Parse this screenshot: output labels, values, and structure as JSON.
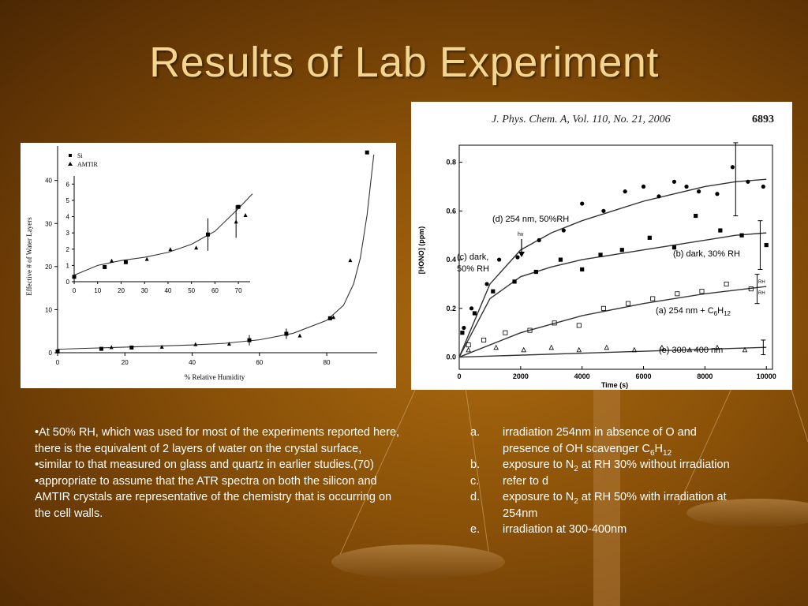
{
  "title": "Results of Lab Experiment",
  "left_chart": {
    "ylabel": "Effective # of Water Layers",
    "xlabel": "% Relative Humidity",
    "x_ticks": [
      "0",
      "20",
      "40",
      "60",
      "80"
    ],
    "y_ticks": [
      "0",
      "10",
      "20",
      "30",
      "40"
    ],
    "legend": [
      "Si",
      "AMTIR"
    ],
    "inset_x_ticks": [
      "0",
      "10",
      "20",
      "30",
      "40",
      "50",
      "60",
      "70"
    ],
    "inset_y_ticks": [
      "0",
      "1",
      "2",
      "3",
      "4",
      "5",
      "6"
    ]
  },
  "right_chart": {
    "citation": "J. Phys. Chem. A, Vol. 110, No. 21, 2006",
    "page": "6893",
    "ylabel": "[HONO] (ppm)",
    "xlabel": "Time (s)",
    "x_ticks": [
      "0",
      "2000",
      "4000",
      "6000",
      "8000",
      "10000"
    ],
    "y_ticks": [
      "0.0",
      "0.2",
      "0.4",
      "0.6",
      "0.8"
    ],
    "labels": {
      "d": "(d) 254 nm, 50%RH",
      "c1": "(c) dark,",
      "c2": "50% RH",
      "b": "(b) dark, 30% RH",
      "a_pre": "(a) 254 nm + C",
      "a_s1": "6",
      "a_mid": "H",
      "a_s2": "12",
      "e": "(e) 300 - 400 nm",
      "hv": "hv",
      "rh_top": "RH",
      "rh_bot": "RH"
    }
  },
  "bullets": [
    "•At 50% RH, which was used for most of the experiments reported here, there is the equivalent of 2 layers of water on the crystal surface,",
    "•similar to that measured on glass and quartz in earlier studies.(70)",
    "•appropriate to assume that the ATR spectra on both the silicon and AMTIR crystals are representative of the chemistry that is occurring on the cell walls."
  ],
  "list": [
    {
      "marker": "a.",
      "pre": "irradiation 254nm in absence of O and presence of OH scavenger C",
      "s1": "6",
      "mid": "H",
      "s2": "12",
      "post": ""
    },
    {
      "marker": "b.",
      "pre": "exposure to N",
      "s1": "2",
      "mid": " at RH 30% without irradiation",
      "s2": "",
      "post": ""
    },
    {
      "marker": "c.",
      "pre": "refer to d",
      "s1": "",
      "mid": "",
      "s2": "",
      "post": ""
    },
    {
      "marker": "d.",
      "pre": "exposure to N",
      "s1": "2",
      "mid": " at RH 50% with irradiation at 254nm",
      "s2": "",
      "post": ""
    },
    {
      "marker": "e.",
      "pre": "irradiation at 300-400nm",
      "s1": "",
      "mid": "",
      "s2": "",
      "post": ""
    }
  ],
  "chart_data": [
    {
      "type": "scatter",
      "xlabel": "% Relative Humidity",
      "ylabel": "Effective # of Water Layers",
      "xlim": [
        0,
        95
      ],
      "ylim": [
        0,
        48
      ],
      "series": [
        {
          "name": "Si",
          "x": [
            0,
            13,
            22,
            57,
            68,
            81,
            92
          ],
          "y": [
            0.3,
            0.9,
            1.2,
            2.9,
            4.4,
            8.0,
            46.5
          ]
        },
        {
          "name": "AMTIR",
          "x": [
            16,
            31,
            41,
            51,
            72,
            82,
            87
          ],
          "y": [
            1.3,
            1.4,
            2.0,
            2.1,
            4.0,
            8.3,
            21.5
          ]
        }
      ],
      "fit": {
        "x": [
          0,
          20,
          40,
          50,
          60,
          70,
          80,
          85,
          88,
          90,
          92,
          94
        ],
        "y": [
          0.8,
          1.3,
          1.8,
          2.2,
          3.0,
          4.5,
          7.5,
          11,
          16,
          22,
          32,
          46
        ]
      },
      "inset": {
        "xlim": [
          0,
          75
        ],
        "ylim": [
          0,
          6.5
        ],
        "series": [
          {
            "name": "Si",
            "x": [
              0,
              13,
              22,
              57,
              70
            ],
            "y": [
              0.3,
              0.9,
              1.2,
              2.9,
              4.6
            ]
          },
          {
            "name": "AMTIR",
            "x": [
              16,
              31,
              41,
              52,
              69,
              73
            ],
            "y": [
              1.3,
              1.4,
              2.0,
              2.1,
              3.7,
              4.1
            ]
          }
        ],
        "fit": {
          "x": [
            0,
            10,
            20,
            30,
            40,
            50,
            60,
            70,
            76
          ],
          "y": [
            0.4,
            1.0,
            1.3,
            1.5,
            1.8,
            2.3,
            3.1,
            4.5,
            5.4
          ]
        }
      }
    },
    {
      "type": "scatter",
      "xlabel": "Time (s)",
      "ylabel": "[HONO] (ppm)",
      "xlim": [
        0,
        10200
      ],
      "ylim": [
        -0.05,
        0.87
      ],
      "series": [
        {
          "name": "(d) 254 nm, 50%RH",
          "marker": "filled-circle",
          "x": [
            150,
            400,
            900,
            1300,
            1900,
            2600,
            3400,
            4000,
            4700,
            5400,
            6000,
            6500,
            7000,
            7400,
            7800,
            8400,
            8900,
            9400,
            9900
          ],
          "y": [
            0.12,
            0.2,
            0.3,
            0.4,
            0.41,
            0.48,
            0.52,
            0.63,
            0.6,
            0.68,
            0.7,
            0.66,
            0.72,
            0.7,
            0.68,
            0.67,
            0.78,
            0.72,
            0.7
          ],
          "fit_x": [
            0,
            1000,
            2000,
            3000,
            4000,
            5000,
            6000,
            7000,
            8000,
            9000,
            10000
          ],
          "fit_y": [
            0,
            0.3,
            0.44,
            0.51,
            0.56,
            0.6,
            0.64,
            0.67,
            0.7,
            0.72,
            0.73
          ]
        },
        {
          "name": "(c) dark, 50% RH",
          "marker": "filled-square",
          "x": [
            100,
            500,
            1100,
            1800,
            2500,
            3300,
            4000,
            4600,
            5300,
            6200,
            7000,
            7700,
            8500,
            9200,
            10000
          ],
          "y": [
            0.1,
            0.18,
            0.27,
            0.31,
            0.35,
            0.4,
            0.36,
            0.42,
            0.44,
            0.49,
            0.45,
            0.58,
            0.52,
            0.5,
            0.46
          ],
          "fit_x": [
            0,
            1000,
            2000,
            3000,
            4000,
            5000,
            6000,
            7000,
            8000,
            9000,
            10000
          ],
          "fit_y": [
            0,
            0.24,
            0.33,
            0.37,
            0.4,
            0.42,
            0.44,
            0.46,
            0.48,
            0.5,
            0.51
          ]
        },
        {
          "name": "(a) 254 nm + C6H12",
          "marker": "open-square",
          "x": [
            300,
            800,
            1500,
            2300,
            3100,
            3900,
            4700,
            5500,
            6300,
            7100,
            7900,
            8700,
            9500
          ],
          "y": [
            0.05,
            0.07,
            0.1,
            0.11,
            0.14,
            0.13,
            0.2,
            0.22,
            0.24,
            0.26,
            0.27,
            0.3,
            0.28
          ],
          "fit_x": [
            0,
            2000,
            4000,
            6000,
            8000,
            10000
          ],
          "fit_y": [
            0,
            0.1,
            0.17,
            0.22,
            0.26,
            0.29
          ]
        },
        {
          "name": "(e) 300 - 400 nm",
          "marker": "open-triangle",
          "x": [
            300,
            1200,
            2100,
            3000,
            3900,
            4800,
            5700,
            6600,
            7500,
            8400,
            9300
          ],
          "y": [
            0.03,
            0.04,
            0.03,
            0.04,
            0.03,
            0.04,
            0.03,
            0.04,
            0.03,
            0.04,
            0.03
          ],
          "fit_x": [
            0,
            10000
          ],
          "fit_y": [
            0.0,
            0.04
          ]
        }
      ]
    }
  ]
}
